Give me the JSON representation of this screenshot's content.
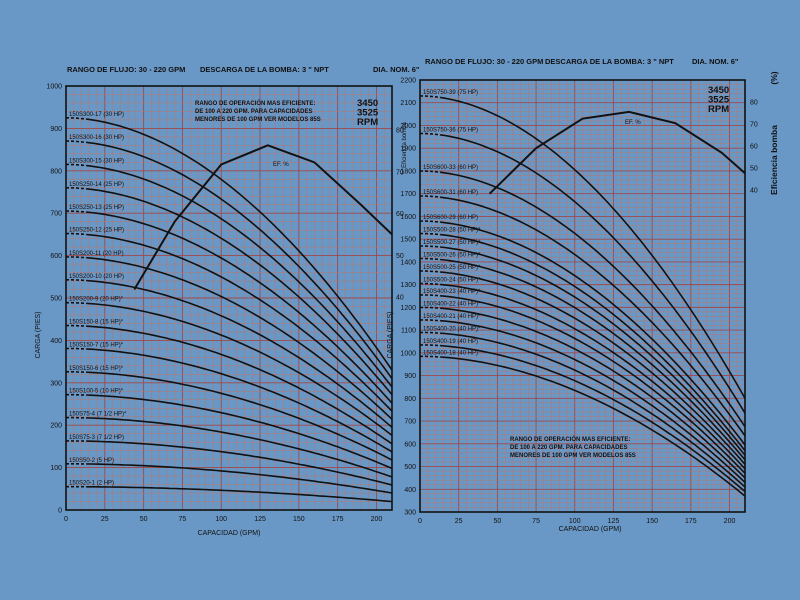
{
  "chart_data": [
    {
      "type": "line",
      "header": {
        "flow_range": "RANGO DE FLUJO: 30 - 220 GPM",
        "discharge": "DESCARGA DE LA BOMBA: 3 \" NPT",
        "diameter": "DIA. NOM. 6\""
      },
      "note": [
        "RANGO DE OPERACIÓN MAS EFICIENTE:",
        "DE 100 A 220 GPM. PARA CAPACIDADES",
        "MENORES DE 100 GPM VER MODELOS 85S"
      ],
      "rpm": [
        "3450",
        "3525",
        "RPM"
      ],
      "xlabel": "CAPACIDAD (GPM)",
      "ylabel": "CARGA (PIES)",
      "xlim": [
        0,
        210
      ],
      "ylim": [
        0,
        1000
      ],
      "x_ticks": [
        "0",
        "25",
        "50",
        "75",
        "100",
        "125",
        "150",
        "175",
        "200"
      ],
      "y_ticks": [
        "0",
        "100",
        "200",
        "300",
        "400",
        "500",
        "600",
        "700",
        "800",
        "900",
        "1000"
      ],
      "right_ticks": [
        "80",
        "70",
        "60",
        "50",
        "40"
      ],
      "efficiency_label": "EF. %",
      "efficiency_curve": [
        [
          44,
          520
        ],
        [
          70,
          680
        ],
        [
          100,
          815
        ],
        [
          130,
          860
        ],
        [
          160,
          820
        ],
        [
          190,
          720
        ],
        [
          210,
          650
        ]
      ],
      "series": [
        {
          "name": "150S300-17 (30 HP)",
          "y0": 925,
          "y210": 330
        },
        {
          "name": "150S300-16 (30 HP)",
          "y0": 870,
          "y210": 310
        },
        {
          "name": "150S300-15 (30 HP)",
          "y0": 815,
          "y210": 290
        },
        {
          "name": "150S250-14 (25 HP)",
          "y0": 760,
          "y210": 272
        },
        {
          "name": "150S250-13 (25 HP)",
          "y0": 705,
          "y210": 252
        },
        {
          "name": "150S250-12 (25 HP)",
          "y0": 652,
          "y210": 233
        },
        {
          "name": "150S200-11 (20 HP)",
          "y0": 597,
          "y210": 214
        },
        {
          "name": "150S200-10 (20 HP)",
          "y0": 543,
          "y210": 195
        },
        {
          "name": "150S200-9 (20 HP)*",
          "y0": 489,
          "y210": 176
        },
        {
          "name": "150S150-8 (15 HP)*",
          "y0": 435,
          "y210": 156
        },
        {
          "name": "150S150-7 (15 HP)*",
          "y0": 381,
          "y210": 137
        },
        {
          "name": "150S150-6 (15 HP)*",
          "y0": 326,
          "y210": 118
        },
        {
          "name": "150S100-5 (10 HP)*",
          "y0": 272,
          "y210": 98
        },
        {
          "name": "150S75-4 (7 1/2 HP)*",
          "y0": 218,
          "y210": 78
        },
        {
          "name": "150S75-3 (7 1/2 HP)",
          "y0": 163,
          "y210": 59
        },
        {
          "name": "150S50-2 (5 HP)",
          "y0": 109,
          "y210": 40
        },
        {
          "name": "150S20-1 (2 HP)",
          "y0": 55,
          "y210": 20
        }
      ]
    },
    {
      "type": "line",
      "header": {
        "flow_range": "RANGO DE FLUJO: 30 - 220 GPM",
        "discharge": "DESCARGA DE LA BOMBA: 3 \" NPT",
        "diameter": "DIA. NOM. 6\""
      },
      "note": [
        "RANGO DE OPERACIÓN MAS EFICIENTE:",
        "DE 100 A 220 GPM. PARA CAPACIDADES",
        "MENORES DE 100 GPM VER MODELOS 85S"
      ],
      "rpm": [
        "3450",
        "3525",
        "RPM"
      ],
      "xlabel": "CAPACIDAD (GPM)",
      "ylabel": "CARGA (PIES)",
      "right_title": "Eficiencia bomba",
      "right_unit": "(%)",
      "left_small_label": "Eficiencia bomba",
      "xlim": [
        0,
        210
      ],
      "ylim": [
        300,
        2200
      ],
      "x_ticks": [
        "0",
        "25",
        "50",
        "75",
        "100",
        "125",
        "150",
        "175",
        "200"
      ],
      "y_ticks": [
        "300",
        "400",
        "500",
        "600",
        "700",
        "800",
        "900",
        "1000",
        "1100",
        "1200",
        "1300",
        "1400",
        "1500",
        "1600",
        "1700",
        "1800",
        "1900",
        "2000",
        "2100",
        "2200"
      ],
      "right_ticks": [
        "80",
        "70",
        "60",
        "50",
        "40"
      ],
      "efficiency_label": "EF. %",
      "efficiency_curve": [
        [
          45,
          1700
        ],
        [
          75,
          1900
        ],
        [
          105,
          2030
        ],
        [
          135,
          2060
        ],
        [
          165,
          2010
        ],
        [
          195,
          1880
        ],
        [
          210,
          1790
        ]
      ],
      "series": [
        {
          "name": "150S750-39 (75 HP)",
          "y0": 2130,
          "y210": 800
        },
        {
          "name": "150S750-36 (75 HP)",
          "y0": 1965,
          "y210": 735
        },
        {
          "name": "150S600-33 (60 HP)",
          "y0": 1800,
          "y210": 675
        },
        {
          "name": "150S600-31 (60 HP)",
          "y0": 1690,
          "y210": 635
        },
        {
          "name": "150S600-29 (60 HP)",
          "y0": 1580,
          "y210": 595
        },
        {
          "name": "150S500-28 (50 HP)*",
          "y0": 1525,
          "y210": 570
        },
        {
          "name": "150S500-27 (50 HP)*",
          "y0": 1470,
          "y210": 550
        },
        {
          "name": "150S500-26 (50 HP)*",
          "y0": 1415,
          "y210": 530
        },
        {
          "name": "150S500-25 (50 HP)*",
          "y0": 1360,
          "y210": 510
        },
        {
          "name": "150S500-24 (50 HP)*",
          "y0": 1305,
          "y210": 490
        },
        {
          "name": "150S400-23 (40 HP)*",
          "y0": 1255,
          "y210": 470
        },
        {
          "name": "150S400-22 (40 HP)*",
          "y0": 1200,
          "y210": 450
        },
        {
          "name": "150S400-21 (40 HP)*",
          "y0": 1145,
          "y210": 430
        },
        {
          "name": "150S400-20 (40 HP)*",
          "y0": 1090,
          "y210": 410
        },
        {
          "name": "150S400-19 (40 HP)",
          "y0": 1035,
          "y210": 390
        },
        {
          "name": "150S400-18 (40 HP)",
          "y0": 985,
          "y210": 370
        }
      ]
    }
  ]
}
